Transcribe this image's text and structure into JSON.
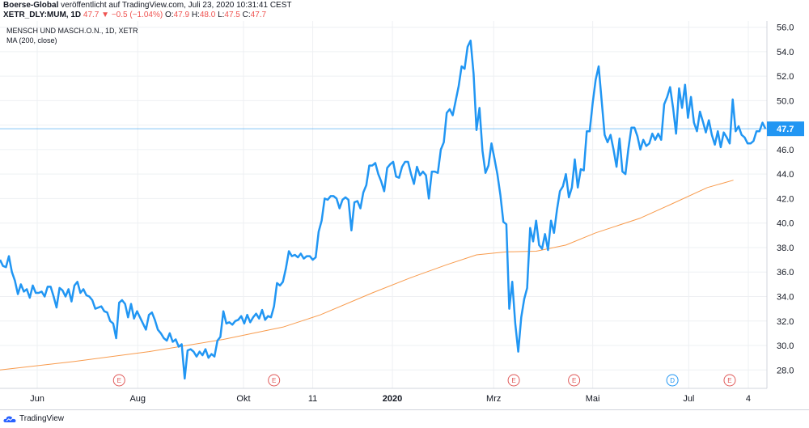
{
  "header": {
    "publisher": "Boerse-Global",
    "published_text": "veröffentlicht auf TradingView.com, Juli 23, 2020 10:31:41 CEST",
    "symbol": "XETR_DLY:MUM, 1D",
    "last": "47.7",
    "change_arrow": "▼",
    "change": "−0.5 (−1.04%)",
    "o_label": "O:",
    "o_value": "47.9",
    "h_label": "H:",
    "h_value": "48.0",
    "l_label": "L:",
    "l_value": "47.5",
    "c_label": "C:",
    "c_value": "47.7"
  },
  "legend": {
    "title": "MENSCH UND MASCH.O.N., 1D, XETR",
    "ma": "MA (200, close)"
  },
  "footer": {
    "brand": "TradingView"
  },
  "colors": {
    "price_line": "#2196f3",
    "ma_line": "#f89b4d",
    "last_price_label": "#2196f3",
    "grid": "#eef0f3",
    "earnings_marker": "#e05a5a",
    "dividend_marker": "#2196f3"
  },
  "chart_data": {
    "type": "line",
    "ylim": [
      26.5,
      56.5
    ],
    "y_ticks": [
      "56.0",
      "54.0",
      "52.0",
      "50.0",
      "48.0",
      "46.0",
      "44.0",
      "42.0",
      "40.0",
      "38.0",
      "36.0",
      "34.0",
      "32.0",
      "30.0",
      "28.0"
    ],
    "last_price_label": "47.7",
    "last_price": 47.7,
    "x_ticks": [
      {
        "label": "Jun",
        "t": 0.05
      },
      {
        "label": "Aug",
        "t": 0.185
      },
      {
        "label": "Okt",
        "t": 0.327
      },
      {
        "label": "11",
        "t": 0.42
      },
      {
        "label": "2020",
        "t": 0.527,
        "bold": true
      },
      {
        "label": "Mrz",
        "t": 0.663
      },
      {
        "label": "Mai",
        "t": 0.796
      },
      {
        "label": "Jul",
        "t": 0.925
      },
      {
        "label": "4",
        "t": 1.005
      }
    ],
    "events": [
      {
        "label": "E",
        "t": 0.16,
        "kind": "earnings"
      },
      {
        "label": "E",
        "t": 0.368,
        "kind": "earnings"
      },
      {
        "label": "E",
        "t": 0.69,
        "kind": "earnings"
      },
      {
        "label": "E",
        "t": 0.771,
        "kind": "earnings"
      },
      {
        "label": "D",
        "t": 0.903,
        "kind": "dividend"
      },
      {
        "label": "E",
        "t": 0.98,
        "kind": "earnings"
      }
    ],
    "series": [
      {
        "name": "MA (200, close)",
        "points": [
          [
            0,
            28.0
          ],
          [
            0.1,
            28.7
          ],
          [
            0.2,
            29.5
          ],
          [
            0.3,
            30.5
          ],
          [
            0.38,
            31.5
          ],
          [
            0.43,
            32.5
          ],
          [
            0.5,
            34.3
          ],
          [
            0.55,
            35.5
          ],
          [
            0.6,
            36.6
          ],
          [
            0.64,
            37.4
          ],
          [
            0.68,
            37.65
          ],
          [
            0.72,
            37.7
          ],
          [
            0.76,
            38.2
          ],
          [
            0.8,
            39.2
          ],
          [
            0.86,
            40.4
          ],
          [
            0.9,
            41.5
          ],
          [
            0.95,
            42.9
          ],
          [
            0.985,
            43.5
          ]
        ]
      },
      {
        "name": "MENSCH UND MASCH.O.N., 1D, XETR",
        "points": [
          [
            0.0,
            37.0
          ],
          [
            0.004,
            36.5
          ],
          [
            0.008,
            36.4
          ],
          [
            0.012,
            37.3
          ],
          [
            0.016,
            36.0
          ],
          [
            0.02,
            35.3
          ],
          [
            0.024,
            34.2
          ],
          [
            0.028,
            35.0
          ],
          [
            0.032,
            34.4
          ],
          [
            0.036,
            34.6
          ],
          [
            0.04,
            33.9
          ],
          [
            0.044,
            34.9
          ],
          [
            0.048,
            34.3
          ],
          [
            0.052,
            34.3
          ],
          [
            0.056,
            34.4
          ],
          [
            0.06,
            34.0
          ],
          [
            0.064,
            34.8
          ],
          [
            0.068,
            34.8
          ],
          [
            0.072,
            34.0
          ],
          [
            0.076,
            33.1
          ],
          [
            0.08,
            34.7
          ],
          [
            0.084,
            34.5
          ],
          [
            0.088,
            34.0
          ],
          [
            0.092,
            34.6
          ],
          [
            0.096,
            33.6
          ],
          [
            0.1,
            34.9
          ],
          [
            0.104,
            35.2
          ],
          [
            0.108,
            34.3
          ],
          [
            0.112,
            34.6
          ],
          [
            0.116,
            34.1
          ],
          [
            0.12,
            34.0
          ],
          [
            0.124,
            33.7
          ],
          [
            0.128,
            33.0
          ],
          [
            0.132,
            33.1
          ],
          [
            0.136,
            33.2
          ],
          [
            0.14,
            32.8
          ],
          [
            0.144,
            32.7
          ],
          [
            0.148,
            32.0
          ],
          [
            0.152,
            31.8
          ],
          [
            0.156,
            30.6
          ],
          [
            0.16,
            33.5
          ],
          [
            0.164,
            33.7
          ],
          [
            0.168,
            33.4
          ],
          [
            0.172,
            32.3
          ],
          [
            0.176,
            33.4
          ],
          [
            0.18,
            32.2
          ],
          [
            0.184,
            32.8
          ],
          [
            0.188,
            32.3
          ],
          [
            0.192,
            31.8
          ],
          [
            0.196,
            31.3
          ],
          [
            0.2,
            32.5
          ],
          [
            0.204,
            32.7
          ],
          [
            0.208,
            32.1
          ],
          [
            0.212,
            31.3
          ],
          [
            0.216,
            31.0
          ],
          [
            0.22,
            30.6
          ],
          [
            0.224,
            30.4
          ],
          [
            0.228,
            31.0
          ],
          [
            0.232,
            30.3
          ],
          [
            0.236,
            30.5
          ],
          [
            0.24,
            29.9
          ],
          [
            0.244,
            30.1
          ],
          [
            0.248,
            27.3
          ],
          [
            0.252,
            29.6
          ],
          [
            0.256,
            29.7
          ],
          [
            0.26,
            29.5
          ],
          [
            0.264,
            29.1
          ],
          [
            0.268,
            29.5
          ],
          [
            0.272,
            29.2
          ],
          [
            0.276,
            29.7
          ],
          [
            0.28,
            29.0
          ],
          [
            0.284,
            29.3
          ],
          [
            0.288,
            29.1
          ],
          [
            0.292,
            30.4
          ],
          [
            0.296,
            30.7
          ],
          [
            0.3,
            32.8
          ],
          [
            0.304,
            31.8
          ],
          [
            0.308,
            31.9
          ],
          [
            0.312,
            31.7
          ],
          [
            0.316,
            32.0
          ],
          [
            0.32,
            32.1
          ],
          [
            0.324,
            32.4
          ],
          [
            0.328,
            31.8
          ],
          [
            0.332,
            32.5
          ],
          [
            0.336,
            31.9
          ],
          [
            0.34,
            32.3
          ],
          [
            0.344,
            32.6
          ],
          [
            0.348,
            32.2
          ],
          [
            0.352,
            32.9
          ],
          [
            0.356,
            32.1
          ],
          [
            0.36,
            32.4
          ],
          [
            0.364,
            32.3
          ],
          [
            0.368,
            33.2
          ],
          [
            0.372,
            35.1
          ],
          [
            0.376,
            34.9
          ],
          [
            0.38,
            35.2
          ],
          [
            0.384,
            36.3
          ],
          [
            0.388,
            37.7
          ],
          [
            0.392,
            37.3
          ],
          [
            0.396,
            37.4
          ],
          [
            0.4,
            37.2
          ],
          [
            0.404,
            37.5
          ],
          [
            0.408,
            37.1
          ],
          [
            0.412,
            37.3
          ],
          [
            0.416,
            37.3
          ],
          [
            0.42,
            37.0
          ],
          [
            0.424,
            37.2
          ],
          [
            0.428,
            39.3
          ],
          [
            0.432,
            40.2
          ],
          [
            0.436,
            42.0
          ],
          [
            0.44,
            41.9
          ],
          [
            0.444,
            42.2
          ],
          [
            0.448,
            42.2
          ],
          [
            0.452,
            42.0
          ],
          [
            0.456,
            41.2
          ],
          [
            0.46,
            41.9
          ],
          [
            0.464,
            42.1
          ],
          [
            0.468,
            41.9
          ],
          [
            0.472,
            39.4
          ],
          [
            0.476,
            41.7
          ],
          [
            0.48,
            41.8
          ],
          [
            0.484,
            41.2
          ],
          [
            0.488,
            42.5
          ],
          [
            0.492,
            43.1
          ],
          [
            0.496,
            44.7
          ],
          [
            0.5,
            44.7
          ],
          [
            0.504,
            44.9
          ],
          [
            0.508,
            44.0
          ],
          [
            0.512,
            43.4
          ],
          [
            0.516,
            42.6
          ],
          [
            0.52,
            44.5
          ],
          [
            0.524,
            44.8
          ],
          [
            0.528,
            45.0
          ],
          [
            0.532,
            43.8
          ],
          [
            0.536,
            43.7
          ],
          [
            0.54,
            44.6
          ],
          [
            0.544,
            45.0
          ],
          [
            0.548,
            45.0
          ],
          [
            0.552,
            44.0
          ],
          [
            0.556,
            43.2
          ],
          [
            0.56,
            44.6
          ],
          [
            0.564,
            43.9
          ],
          [
            0.568,
            44.2
          ],
          [
            0.572,
            43.9
          ],
          [
            0.576,
            42.0
          ],
          [
            0.58,
            44.2
          ],
          [
            0.584,
            44.2
          ],
          [
            0.588,
            44.1
          ],
          [
            0.592,
            46.0
          ],
          [
            0.596,
            46.6
          ],
          [
            0.6,
            49.0
          ],
          [
            0.604,
            49.3
          ],
          [
            0.608,
            48.8
          ],
          [
            0.612,
            50.0
          ],
          [
            0.616,
            51.2
          ],
          [
            0.62,
            52.8
          ],
          [
            0.624,
            52.6
          ],
          [
            0.628,
            54.4
          ],
          [
            0.632,
            54.9
          ],
          [
            0.636,
            52.2
          ],
          [
            0.64,
            47.6
          ],
          [
            0.644,
            49.4
          ],
          [
            0.648,
            45.9
          ],
          [
            0.652,
            44.1
          ],
          [
            0.656,
            44.7
          ],
          [
            0.66,
            46.5
          ],
          [
            0.664,
            45.3
          ],
          [
            0.668,
            44.0
          ],
          [
            0.672,
            42.3
          ],
          [
            0.676,
            40.1
          ],
          [
            0.68,
            39.9
          ],
          [
            0.684,
            33.0
          ],
          [
            0.688,
            35.2
          ],
          [
            0.692,
            31.8
          ],
          [
            0.696,
            29.5
          ],
          [
            0.7,
            32.3
          ],
          [
            0.704,
            33.8
          ],
          [
            0.708,
            34.7
          ],
          [
            0.712,
            39.6
          ],
          [
            0.716,
            38.5
          ],
          [
            0.72,
            40.2
          ],
          [
            0.724,
            38.2
          ],
          [
            0.728,
            37.9
          ],
          [
            0.732,
            39.1
          ],
          [
            0.736,
            37.8
          ],
          [
            0.74,
            40.2
          ],
          [
            0.744,
            39.2
          ],
          [
            0.748,
            41.1
          ],
          [
            0.752,
            42.6
          ],
          [
            0.756,
            43.0
          ],
          [
            0.76,
            44.0
          ],
          [
            0.764,
            42.1
          ],
          [
            0.768,
            42.9
          ],
          [
            0.772,
            45.2
          ],
          [
            0.776,
            42.9
          ],
          [
            0.78,
            44.4
          ],
          [
            0.784,
            44.3
          ],
          [
            0.788,
            47.5
          ],
          [
            0.792,
            47.5
          ],
          [
            0.796,
            49.8
          ],
          [
            0.8,
            51.7
          ],
          [
            0.804,
            52.8
          ],
          [
            0.808,
            50.0
          ],
          [
            0.812,
            47.2
          ],
          [
            0.816,
            46.6
          ],
          [
            0.82,
            47.2
          ],
          [
            0.824,
            46.0
          ],
          [
            0.828,
            44.6
          ],
          [
            0.832,
            46.9
          ],
          [
            0.836,
            44.2
          ],
          [
            0.84,
            44.0
          ],
          [
            0.844,
            46.1
          ],
          [
            0.848,
            47.8
          ],
          [
            0.852,
            47.8
          ],
          [
            0.856,
            47.1
          ],
          [
            0.86,
            46.0
          ],
          [
            0.864,
            46.8
          ],
          [
            0.868,
            46.3
          ],
          [
            0.872,
            46.5
          ],
          [
            0.876,
            47.3
          ],
          [
            0.88,
            46.8
          ],
          [
            0.884,
            47.3
          ],
          [
            0.888,
            46.8
          ],
          [
            0.892,
            49.7
          ],
          [
            0.896,
            50.3
          ],
          [
            0.9,
            51.1
          ],
          [
            0.904,
            49.4
          ],
          [
            0.908,
            47.3
          ],
          [
            0.912,
            51.0
          ],
          [
            0.916,
            49.4
          ],
          [
            0.92,
            51.3
          ],
          [
            0.924,
            48.6
          ],
          [
            0.928,
            50.3
          ],
          [
            0.932,
            48.2
          ],
          [
            0.936,
            47.5
          ],
          [
            0.94,
            49.1
          ],
          [
            0.944,
            48.3
          ],
          [
            0.948,
            47.4
          ],
          [
            0.952,
            48.4
          ],
          [
            0.956,
            47.2
          ],
          [
            0.96,
            46.4
          ],
          [
            0.964,
            47.5
          ],
          [
            0.968,
            46.2
          ],
          [
            0.972,
            47.4
          ],
          [
            0.976,
            47.0
          ],
          [
            0.98,
            46.5
          ],
          [
            0.984,
            50.1
          ],
          [
            0.988,
            47.5
          ],
          [
            0.992,
            47.9
          ],
          [
            0.996,
            47.2
          ],
          [
            1.0,
            47.0
          ],
          [
            1.004,
            46.5
          ],
          [
            1.008,
            46.5
          ],
          [
            1.012,
            46.7
          ],
          [
            1.016,
            47.5
          ],
          [
            1.02,
            47.5
          ],
          [
            1.024,
            48.2
          ],
          [
            1.028,
            47.7
          ]
        ]
      }
    ]
  }
}
